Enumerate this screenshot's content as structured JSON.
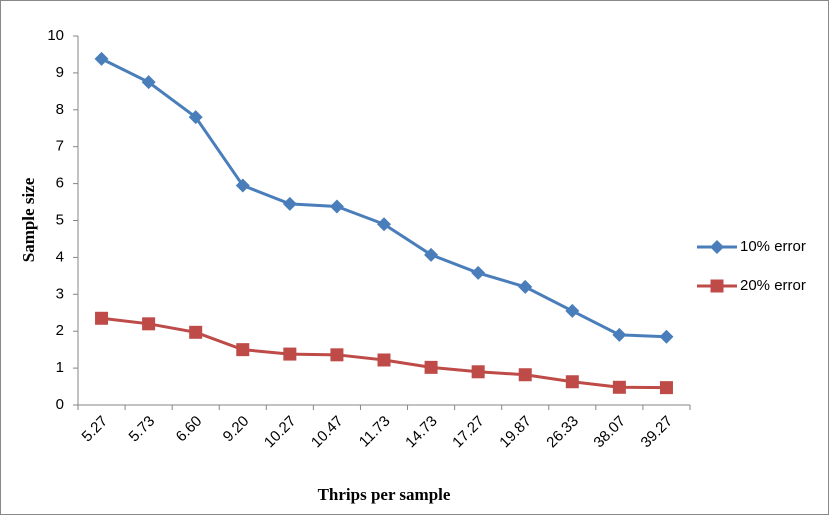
{
  "chart_data": {
    "type": "line",
    "x_label": "Thrips per sample",
    "y_label": "Sample size",
    "categories": [
      "5.27",
      "5.73",
      "6.60",
      "9.20",
      "10.27",
      "10.47",
      "11.73",
      "14.73",
      "17.27",
      "19.87",
      "26.33",
      "38.07",
      "39.27"
    ],
    "series": [
      {
        "name": "10% error",
        "color": "#4a7ebb",
        "marker": "diamond",
        "values": [
          9.38,
          8.75,
          7.8,
          5.95,
          5.45,
          5.38,
          4.9,
          4.07,
          3.58,
          3.2,
          2.55,
          1.9,
          1.85
        ]
      },
      {
        "name": "20% error",
        "color": "#be4b48",
        "marker": "square",
        "values": [
          2.35,
          2.2,
          1.97,
          1.5,
          1.38,
          1.36,
          1.22,
          1.02,
          0.9,
          0.82,
          0.63,
          0.48,
          0.47
        ]
      }
    ],
    "ylim": [
      0,
      10
    ],
    "yticks": [
      0,
      1,
      2,
      3,
      4,
      5,
      6,
      7,
      8,
      9,
      10
    ],
    "legend": "right"
  }
}
